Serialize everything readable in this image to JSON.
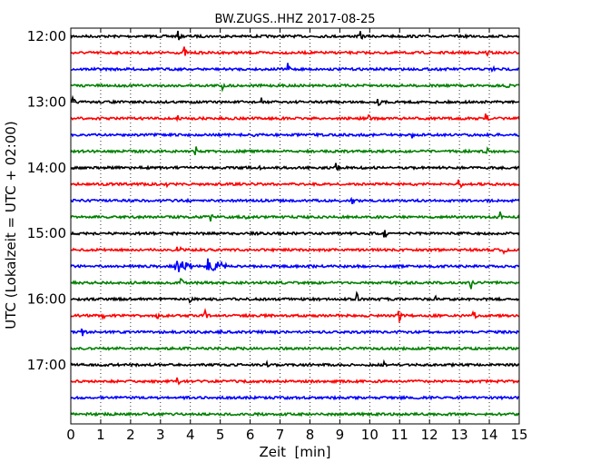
{
  "chart_data": {
    "type": "line",
    "title": "BW.ZUGS..HHZ 2017-08-25",
    "xlabel": "Zeit  [min]",
    "ylabel": "UTC (Lokalzeit = UTC + 02:00)",
    "xlim": [
      0,
      15
    ],
    "x_ticks": [
      "0",
      "1",
      "2",
      "3",
      "4",
      "5",
      "6",
      "7",
      "8",
      "9",
      "10",
      "11",
      "12",
      "13",
      "14",
      "15"
    ],
    "y_ticks": [
      "12:00",
      "13:00",
      "14:00",
      "15:00",
      "16:00",
      "17:00"
    ],
    "grid": "vertical dotted",
    "colors": [
      "#000000",
      "#ff0000",
      "#0000ff",
      "#008000"
    ],
    "traces": [
      {
        "start": "12:00",
        "color": "#000000",
        "events": [
          {
            "t": 3.6,
            "a": 6
          },
          {
            "t": 9.7,
            "a": 6
          }
        ]
      },
      {
        "start": "12:15",
        "color": "#ff0000",
        "events": [
          {
            "t": 3.8,
            "a": 7
          },
          {
            "t": 13.9,
            "a": 7
          }
        ]
      },
      {
        "start": "12:30",
        "color": "#0000ff",
        "events": [
          {
            "t": 7.3,
            "a": 7
          },
          {
            "t": 14.1,
            "a": 5
          }
        ]
      },
      {
        "start": "12:45",
        "color": "#008000",
        "events": [
          {
            "t": 5.1,
            "a": 6
          },
          {
            "t": 14.6,
            "a": 6
          }
        ]
      },
      {
        "start": "13:00",
        "color": "#000000",
        "events": [
          {
            "t": 0.1,
            "a": 5
          },
          {
            "t": 6.4,
            "a": 5
          },
          {
            "t": 10.3,
            "a": 5
          }
        ]
      },
      {
        "start": "13:15",
        "color": "#ff0000",
        "events": [
          {
            "t": 3.6,
            "a": 6
          },
          {
            "t": 10.0,
            "a": 4
          },
          {
            "t": 13.9,
            "a": 6
          }
        ]
      },
      {
        "start": "13:30",
        "color": "#0000ff",
        "events": [
          {
            "t": 6.1,
            "a": 4
          },
          {
            "t": 11.4,
            "a": 7
          }
        ]
      },
      {
        "start": "13:45",
        "color": "#008000",
        "events": [
          {
            "t": 4.2,
            "a": 6
          },
          {
            "t": 13.9,
            "a": 6
          }
        ]
      },
      {
        "start": "14:00",
        "color": "#000000",
        "events": [
          {
            "t": 6.3,
            "a": 4
          },
          {
            "t": 8.9,
            "a": 6
          }
        ]
      },
      {
        "start": "14:15",
        "color": "#ff0000",
        "events": [
          {
            "t": 3.2,
            "a": 6
          },
          {
            "t": 13.0,
            "a": 7
          }
        ]
      },
      {
        "start": "14:30",
        "color": "#0000ff",
        "events": [
          {
            "t": 9.4,
            "a": 6
          }
        ]
      },
      {
        "start": "14:45",
        "color": "#008000",
        "events": [
          {
            "t": 4.7,
            "a": 6
          },
          {
            "t": 5.9,
            "a": 5
          },
          {
            "t": 14.4,
            "a": 7
          }
        ]
      },
      {
        "start": "15:00",
        "color": "#000000",
        "events": [
          {
            "t": 10.5,
            "a": 7
          }
        ]
      },
      {
        "start": "15:15",
        "color": "#ff0000",
        "events": [
          {
            "t": 3.6,
            "a": 7
          },
          {
            "t": 14.5,
            "a": 7
          }
        ]
      },
      {
        "start": "15:30",
        "color": "#0000ff",
        "events": [
          {
            "t": 3.5,
            "a": 10
          },
          {
            "t": 4.6,
            "a": 11
          },
          {
            "t": 9.5,
            "a": 6
          }
        ]
      },
      {
        "start": "15:45",
        "color": "#008000",
        "events": [
          {
            "t": 3.7,
            "a": 5
          },
          {
            "t": 13.4,
            "a": 7
          }
        ]
      },
      {
        "start": "16:00",
        "color": "#000000",
        "events": [
          {
            "t": 4.0,
            "a": 4
          },
          {
            "t": 9.6,
            "a": 7
          },
          {
            "t": 12.2,
            "a": 4
          }
        ]
      },
      {
        "start": "16:15",
        "color": "#ff0000",
        "events": [
          {
            "t": 1.1,
            "a": 4
          },
          {
            "t": 2.9,
            "a": 4
          },
          {
            "t": 4.5,
            "a": 6
          },
          {
            "t": 11.0,
            "a": 6
          },
          {
            "t": 13.5,
            "a": 5
          }
        ]
      },
      {
        "start": "16:30",
        "color": "#0000ff",
        "events": [
          {
            "t": 0.4,
            "a": 7
          },
          {
            "t": 5.0,
            "a": 4
          }
        ]
      },
      {
        "start": "16:45",
        "color": "#008000",
        "events": []
      },
      {
        "start": "17:00",
        "color": "#000000",
        "events": [
          {
            "t": 6.6,
            "a": 4
          },
          {
            "t": 10.5,
            "a": 4
          }
        ]
      },
      {
        "start": "17:15",
        "color": "#ff0000",
        "events": [
          {
            "t": 3.6,
            "a": 5
          }
        ]
      },
      {
        "start": "17:30",
        "color": "#0000ff",
        "events": []
      },
      {
        "start": "17:45",
        "color": "#008000",
        "events": []
      }
    ]
  }
}
